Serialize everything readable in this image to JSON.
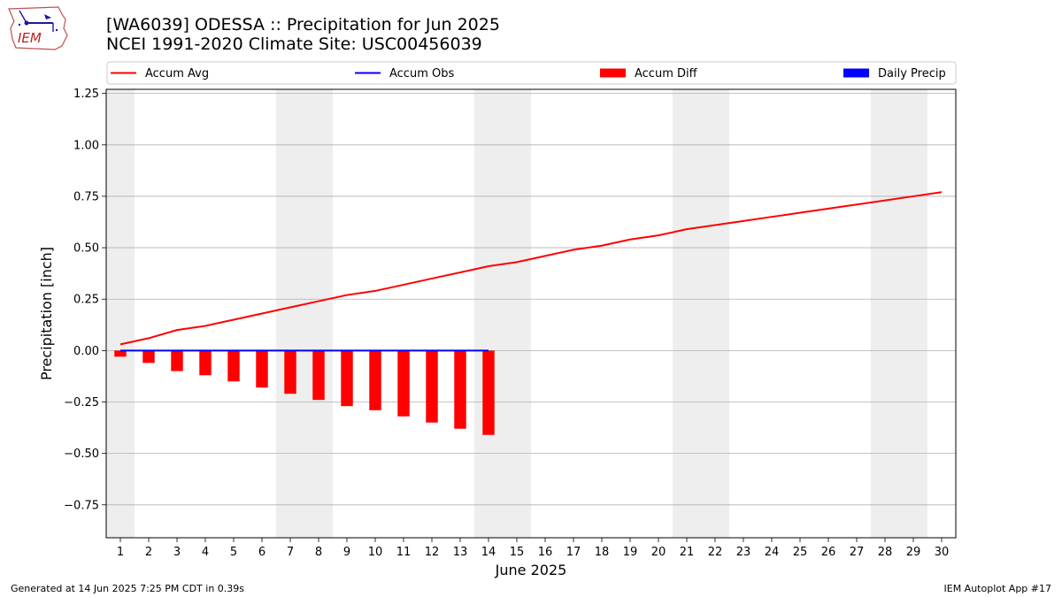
{
  "header": {
    "title_line1": "[WA6039] ODESSA :: Precipitation for Jun 2025",
    "title_line2": "NCEI 1991-2020 Climate Site: USC00456039",
    "logo_text": "IEM"
  },
  "footer": {
    "generated": "Generated at 14 Jun 2025 7:25 PM CDT in 0.39s",
    "app": "IEM Autoplot App #17"
  },
  "colors": {
    "accum_avg": "#ff0000",
    "accum_obs": "#0000ff",
    "accum_diff": "#ff0000",
    "daily_precip": "#0000ff",
    "weekend_band": "#eeeeee",
    "grid": "#b0b0b0"
  },
  "chart_data": {
    "type": "line",
    "title": "[WA6039] ODESSA :: Precipitation for Jun 2025",
    "subtitle": "NCEI 1991-2020 Climate Site: USC00456039",
    "xlabel": "June 2025",
    "ylabel": "Precipitation [inch]",
    "xlim": [
      0.5,
      30.5
    ],
    "ylim": [
      -0.91,
      1.27
    ],
    "x": [
      1,
      2,
      3,
      4,
      5,
      6,
      7,
      8,
      9,
      10,
      11,
      12,
      13,
      14,
      15,
      16,
      17,
      18,
      19,
      20,
      21,
      22,
      23,
      24,
      25,
      26,
      27,
      28,
      29,
      30
    ],
    "xticks": [
      "1",
      "2",
      "3",
      "4",
      "5",
      "6",
      "7",
      "8",
      "9",
      "10",
      "11",
      "12",
      "13",
      "14",
      "15",
      "16",
      "17",
      "18",
      "19",
      "20",
      "21",
      "22",
      "23",
      "24",
      "25",
      "26",
      "27",
      "28",
      "29",
      "30"
    ],
    "yticks": [
      1.25,
      1.0,
      0.75,
      0.5,
      0.25,
      0.0,
      -0.25,
      -0.5,
      -0.75
    ],
    "ytick_labels": [
      "1.25",
      "1.00",
      "0.75",
      "0.50",
      "0.25",
      "0.00",
      "−0.25",
      "−0.50",
      "−0.75"
    ],
    "grid": "horizontal",
    "legend": {
      "placement": "top",
      "columns": 4
    },
    "weekend_bands": [
      [
        0.5,
        1.5
      ],
      [
        6.5,
        8.5
      ],
      [
        13.5,
        15.5
      ],
      [
        20.5,
        22.5
      ],
      [
        27.5,
        29.5
      ]
    ],
    "series": [
      {
        "name": "Accum Avg",
        "kind": "line",
        "x": [
          1,
          2,
          3,
          4,
          5,
          6,
          7,
          8,
          9,
          10,
          11,
          12,
          13,
          14,
          15,
          16,
          17,
          18,
          19,
          20,
          21,
          22,
          23,
          24,
          25,
          26,
          27,
          28,
          29,
          30
        ],
        "values": [
          0.03,
          0.06,
          0.1,
          0.12,
          0.15,
          0.18,
          0.21,
          0.24,
          0.27,
          0.29,
          0.32,
          0.35,
          0.38,
          0.41,
          0.43,
          0.46,
          0.49,
          0.51,
          0.54,
          0.56,
          0.59,
          0.61,
          0.63,
          0.65,
          0.67,
          0.69,
          0.71,
          0.73,
          0.75,
          0.77
        ]
      },
      {
        "name": "Accum Obs",
        "kind": "line",
        "x": [
          1,
          2,
          3,
          4,
          5,
          6,
          7,
          8,
          9,
          10,
          11,
          12,
          13,
          14
        ],
        "values": [
          0,
          0,
          0,
          0,
          0,
          0,
          0,
          0,
          0,
          0,
          0,
          0,
          0,
          0
        ]
      },
      {
        "name": "Accum Diff",
        "kind": "bar",
        "x": [
          1,
          2,
          3,
          4,
          5,
          6,
          7,
          8,
          9,
          10,
          11,
          12,
          13,
          14
        ],
        "values": [
          -0.03,
          -0.06,
          -0.1,
          -0.12,
          -0.15,
          -0.18,
          -0.21,
          -0.24,
          -0.27,
          -0.29,
          -0.32,
          -0.35,
          -0.38,
          -0.41
        ]
      },
      {
        "name": "Daily Precip",
        "kind": "bar",
        "x": [
          1,
          2,
          3,
          4,
          5,
          6,
          7,
          8,
          9,
          10,
          11,
          12,
          13,
          14
        ],
        "values": [
          0,
          0,
          0,
          0,
          0,
          0,
          0,
          0,
          0,
          0,
          0,
          0,
          0,
          0
        ]
      }
    ]
  }
}
